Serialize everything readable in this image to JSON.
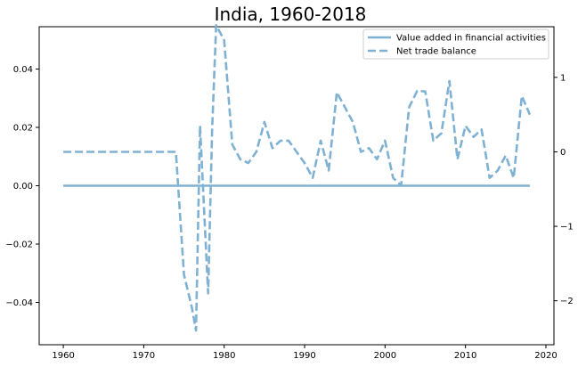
{
  "chart_data": {
    "type": "line",
    "title": "India, 1960-2018",
    "xlabel": "",
    "ylabel": "",
    "xlim": [
      1957,
      2021
    ],
    "x_ticks": [
      1960,
      1970,
      1980,
      1990,
      2000,
      2010,
      2020
    ],
    "left_axis": {
      "ylim": [
        -0.0545,
        0.0545
      ],
      "ticks": [
        -0.04,
        -0.02,
        0.0,
        0.02,
        0.04
      ],
      "tick_labels": [
        "−0.04",
        "−0.02",
        "0.00",
        "0.02",
        "0.04"
      ]
    },
    "right_axis": {
      "ylim": [
        -2.59,
        1.68
      ],
      "ticks": [
        -2,
        -1,
        0,
        1
      ],
      "tick_labels": [
        "−2",
        "−1",
        "0",
        "1"
      ]
    },
    "grid": false,
    "legend": {
      "placement": "top-right"
    },
    "series": [
      {
        "name": "Value added in financial activities",
        "axis": "left",
        "style": "solid",
        "color": "#7fb1d3",
        "x": [
          1960,
          2018
        ],
        "y": [
          0.0,
          0.0
        ]
      },
      {
        "name": "Net trade balance",
        "axis": "right",
        "style": "dashed",
        "color": "#7fb1d3",
        "x": [
          1960,
          1961,
          1962,
          1963,
          1964,
          1965,
          1966,
          1967,
          1968,
          1969,
          1970,
          1971,
          1972,
          1973,
          1974,
          1975,
          1976,
          1976.5,
          1977,
          1978,
          1978.5,
          1979,
          1980,
          1981,
          1982,
          1983,
          1984,
          1985,
          1986,
          1987,
          1988,
          1989,
          1990,
          1991,
          1992,
          1993,
          1994,
          1995,
          1996,
          1997,
          1998,
          1999,
          2000,
          2001,
          2002,
          2003,
          2004,
          2005,
          2006,
          2007,
          2008,
          2009,
          2010,
          2011,
          2012,
          2013,
          2014,
          2015,
          2016,
          2017,
          2018
        ],
        "y": [
          0,
          0,
          0,
          0,
          0,
          0,
          0,
          0,
          0,
          0,
          0,
          0,
          0,
          0,
          0,
          -1.65,
          -2.1,
          -2.4,
          0.35,
          -1.9,
          0.3,
          1.7,
          1.5,
          0.1,
          -0.1,
          -0.15,
          0.0,
          0.4,
          0.05,
          0.15,
          0.15,
          0.0,
          -0.15,
          -0.35,
          0.15,
          -0.25,
          0.8,
          0.6,
          0.4,
          0.0,
          0.05,
          -0.1,
          0.15,
          -0.35,
          -0.45,
          0.6,
          0.82,
          0.81,
          0.15,
          0.25,
          0.95,
          -0.1,
          0.35,
          0.2,
          0.3,
          -0.35,
          -0.25,
          -0.05,
          -0.35,
          0.75,
          0.5
        ]
      }
    ]
  }
}
